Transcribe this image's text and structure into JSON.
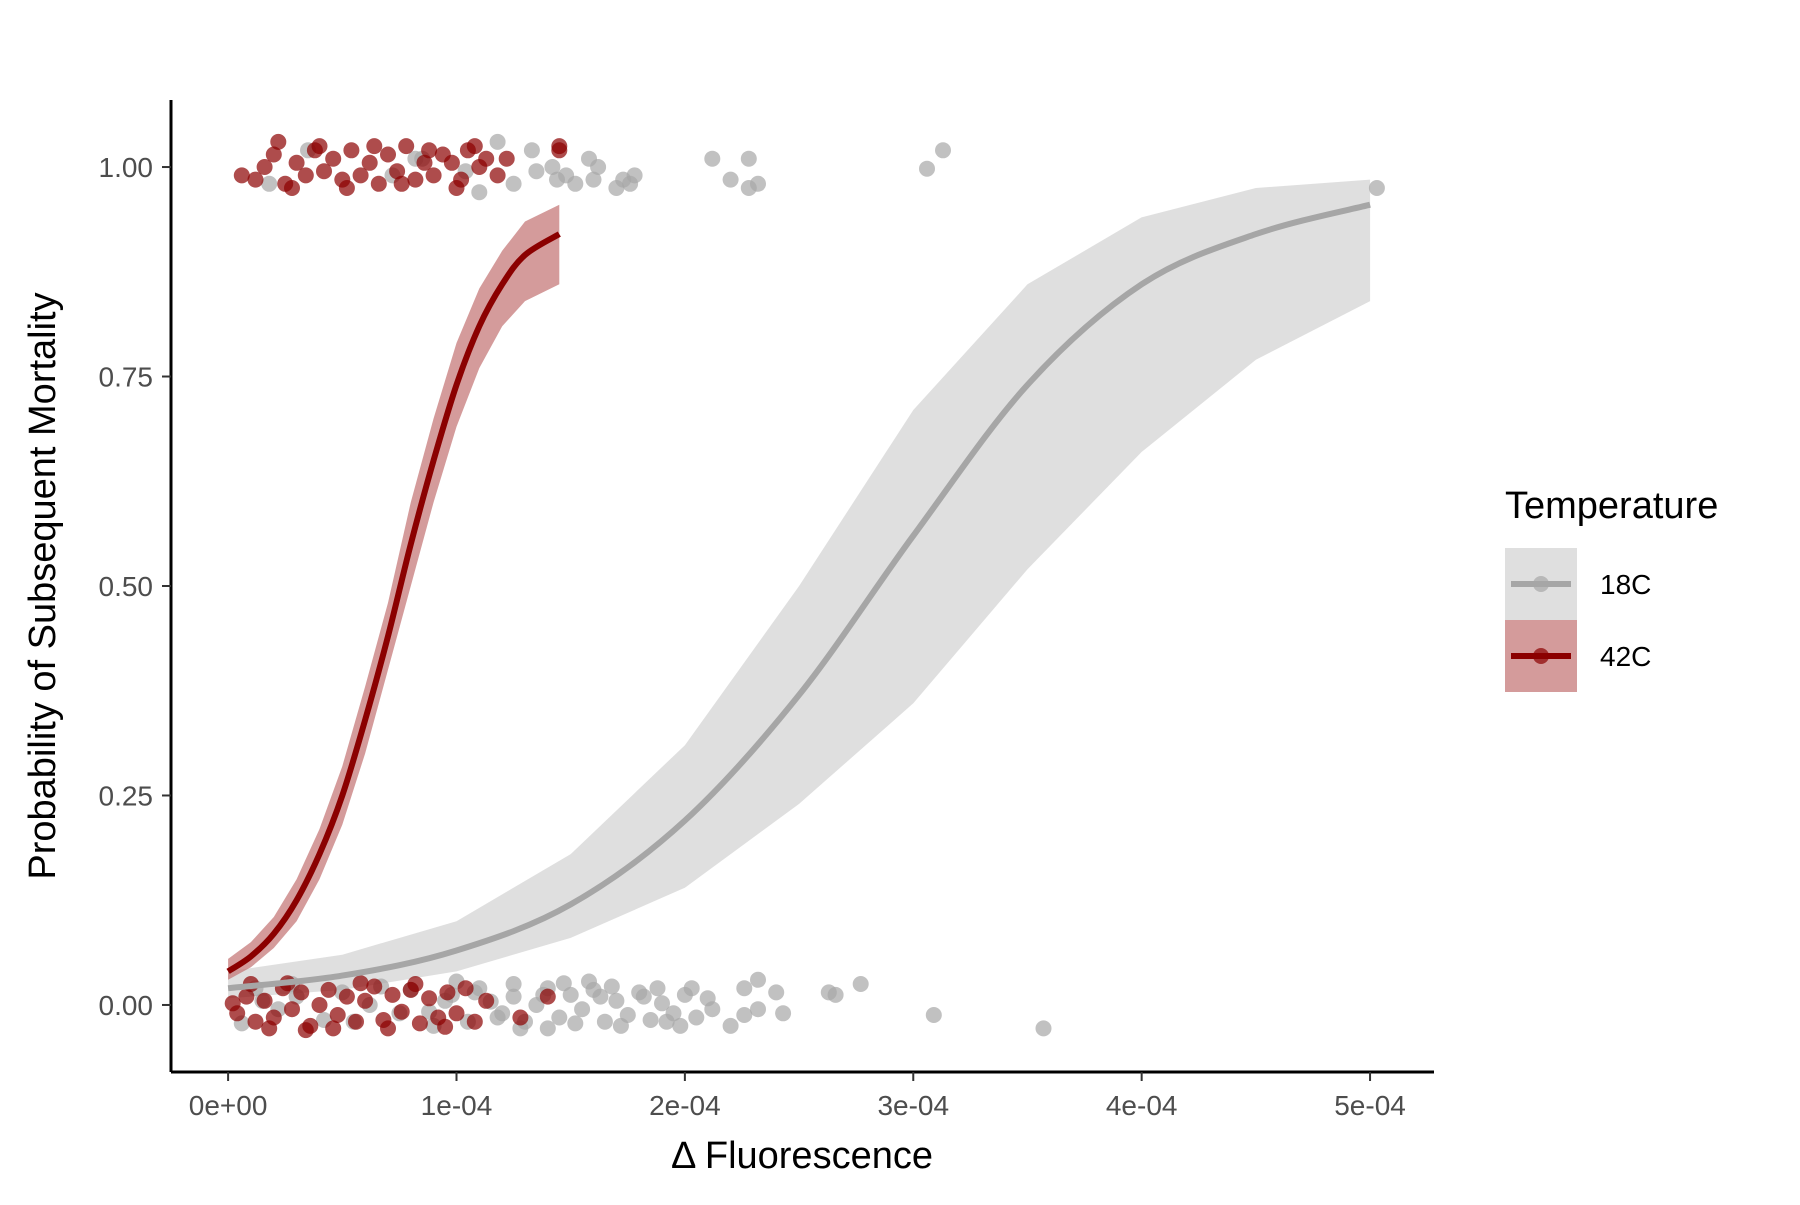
{
  "chart_data": {
    "type": "scatter",
    "xlabel": "Δ Fluorescence",
    "ylabel": "Probability of Subsequent Mortality",
    "xlim": [
      -2.5e-05,
      0.000528
    ],
    "ylim": [
      -0.08,
      1.08
    ],
    "x_ticks": [
      {
        "value": 0,
        "label": "0e+00"
      },
      {
        "value": 0.0001,
        "label": "1e-04"
      },
      {
        "value": 0.0002,
        "label": "2e-04"
      },
      {
        "value": 0.0003,
        "label": "3e-04"
      },
      {
        "value": 0.0004,
        "label": "4e-04"
      },
      {
        "value": 0.0005,
        "label": "5e-04"
      }
    ],
    "y_ticks": [
      {
        "value": 0,
        "label": "0.00"
      },
      {
        "value": 0.25,
        "label": "0.25"
      },
      {
        "value": 0.5,
        "label": "0.50"
      },
      {
        "value": 0.75,
        "label": "0.75"
      },
      {
        "value": 1,
        "label": "1.00"
      }
    ],
    "grid": false,
    "legend": {
      "title": "Temperature",
      "position": "right",
      "entries": [
        {
          "label": "18C",
          "color": "#a6a6a6",
          "band_color": "#d9d9d9"
        },
        {
          "label": "42C",
          "color": "#8b0000",
          "band_color": "#c27070"
        }
      ]
    },
    "series": [
      {
        "name": "18C",
        "color": "#a6a6a6",
        "band_color": "#d9d9d9",
        "fit_x": [
          0,
          5e-05,
          0.0001,
          0.00015,
          0.0002,
          0.00025,
          0.0003,
          0.00035,
          0.0004,
          0.00045,
          0.0005
        ],
        "fit_y": [
          0.02,
          0.035,
          0.065,
          0.12,
          0.22,
          0.37,
          0.56,
          0.74,
          0.86,
          0.92,
          0.955
        ],
        "fit_lower": [
          0.008,
          0.018,
          0.04,
          0.08,
          0.14,
          0.24,
          0.36,
          0.52,
          0.66,
          0.77,
          0.84
        ],
        "fit_upper": [
          0.04,
          0.06,
          0.1,
          0.18,
          0.31,
          0.5,
          0.71,
          0.86,
          0.94,
          0.975,
          0.985
        ],
        "points": [
          [
            1.8e-05,
            0.98
          ],
          [
            3.5e-05,
            1.02
          ],
          [
            7.2e-05,
            0.99
          ],
          [
            8.5e-05,
            1.01
          ],
          [
            0.00011,
            0.97
          ],
          [
            0.000118,
            1.03
          ],
          [
            0.000125,
            0.98
          ],
          [
            0.000135,
            0.995
          ],
          [
            0.000144,
            0.985
          ],
          [
            0.000142,
            1.0
          ],
          [
            0.000148,
            0.99
          ],
          [
            0.000133,
            1.02
          ],
          [
            0.000152,
            0.98
          ],
          [
            0.000162,
            1.0
          ],
          [
            0.00016,
            0.985
          ],
          [
            0.00017,
            0.975
          ],
          [
            0.000158,
            1.01
          ],
          [
            0.000178,
            0.99
          ],
          [
            0.000173,
            0.985
          ],
          [
            0.000176,
            0.98
          ],
          [
            0.000212,
            1.01
          ],
          [
            0.00022,
            0.985
          ],
          [
            0.000228,
            1.01
          ],
          [
            0.000228,
            0.975
          ],
          [
            0.000232,
            0.98
          ],
          [
            0.000306,
            0.998
          ],
          [
            0.000313,
            1.02
          ],
          [
            0.000503,
            0.975
          ],
          [
            8.2e-05,
            1.01
          ],
          [
            0.000104,
            0.995
          ],
          [
            0.00012,
            -0.01
          ],
          [
            0.000125,
            0.01
          ],
          [
            0.00013,
            -0.02
          ],
          [
            0.000135,
            0.0
          ],
          [
            0.00014,
            0.02
          ],
          [
            0.000145,
            -0.015
          ],
          [
            0.00015,
            0.012
          ],
          [
            0.000155,
            -0.005
          ],
          [
            0.00016,
            0.018
          ],
          [
            0.000165,
            -0.02
          ],
          [
            0.00017,
            0.005
          ],
          [
            0.000175,
            -0.012
          ],
          [
            0.00018,
            0.015
          ],
          [
            0.000185,
            -0.018
          ],
          [
            0.00019,
            0.002
          ],
          [
            0.000195,
            -0.01
          ],
          [
            0.0002,
            0.012
          ],
          [
            0.000205,
            -0.015
          ],
          [
            0.00021,
            0.008
          ],
          [
            0.000125,
            0.025
          ],
          [
            0.00014,
            -0.028
          ],
          [
            0.000158,
            0.028
          ],
          [
            0.000168,
            0.022
          ],
          [
            0.000182,
            0.01
          ],
          [
            0.000198,
            -0.025
          ],
          [
            0.00022,
            -0.025
          ],
          [
            0.000226,
            0.02
          ],
          [
            0.000232,
            0.03
          ],
          [
            0.000226,
            -0.012
          ],
          [
            0.00024,
            0.015
          ],
          [
            0.000232,
            -0.005
          ],
          [
            0.000243,
            -0.01
          ],
          [
            0.000263,
            0.015
          ],
          [
            0.000266,
            0.012
          ],
          [
            0.000277,
            0.025
          ],
          [
            0.000309,
            -0.012
          ],
          [
            0.000357,
            -0.028
          ],
          [
            0.00011,
            0.02
          ],
          [
            0.000105,
            -0.02
          ],
          [
            0.0001,
            0.028
          ],
          [
            9e-05,
            -0.025
          ],
          [
            9.5e-05,
            0.005
          ],
          [
            8e-05,
            0.018
          ],
          [
            7.5e-05,
            -0.01
          ],
          [
            6.2e-05,
            0.0
          ],
          [
            5e-05,
            0.015
          ],
          [
            4.2e-05,
            -0.018
          ],
          [
            3e-05,
            0.01
          ],
          [
            2.2e-05,
            -0.005
          ],
          [
            1.2e-05,
            0.02
          ],
          [
            6e-06,
            -0.022
          ],
          [
            1.5e-05,
            0.005
          ],
          [
            2.8e-05,
            0.025
          ],
          [
            5.5e-05,
            -0.02
          ],
          [
            6.7e-05,
            0.022
          ],
          [
            0.000115,
            0.004
          ],
          [
            0.000128,
            -0.028
          ],
          [
            0.000147,
            0.026
          ],
          [
            0.000152,
            -0.022
          ],
          [
            0.000163,
            0.01
          ],
          [
            0.000188,
            0.02
          ],
          [
            0.000172,
            -0.025
          ],
          [
            0.000192,
            -0.02
          ],
          [
            0.000203,
            0.02
          ],
          [
            0.000212,
            -0.005
          ],
          [
            0.000138,
            0.012
          ],
          [
            0.000118,
            -0.015
          ],
          [
            9.8e-05,
            0.012
          ],
          [
            8.8e-05,
            -0.008
          ],
          [
            0.000108,
            0.015
          ]
        ]
      },
      {
        "name": "42C",
        "color": "#8b0000",
        "band_color": "#c27070",
        "fit_x": [
          0,
          1e-05,
          2e-05,
          3e-05,
          4e-05,
          5e-05,
          6e-05,
          7e-05,
          8e-05,
          9e-05,
          0.0001,
          0.00011,
          0.00012,
          0.00013,
          0.000145
        ],
        "fit_y": [
          0.04,
          0.058,
          0.085,
          0.125,
          0.18,
          0.25,
          0.34,
          0.44,
          0.55,
          0.65,
          0.74,
          0.81,
          0.86,
          0.895,
          0.92
        ],
        "fit_lower": [
          0.03,
          0.045,
          0.068,
          0.1,
          0.15,
          0.215,
          0.3,
          0.4,
          0.5,
          0.6,
          0.69,
          0.76,
          0.81,
          0.84,
          0.86
        ],
        "fit_upper": [
          0.055,
          0.075,
          0.105,
          0.15,
          0.21,
          0.285,
          0.38,
          0.48,
          0.6,
          0.7,
          0.79,
          0.855,
          0.9,
          0.935,
          0.955
        ],
        "points": [
          [
            6e-06,
            0.99
          ],
          [
            1.2e-05,
            0.985
          ],
          [
            1.6e-05,
            1.0
          ],
          [
            2e-05,
            1.015
          ],
          [
            2.5e-05,
            0.98
          ],
          [
            3e-05,
            1.005
          ],
          [
            3.4e-05,
            0.99
          ],
          [
            3.8e-05,
            1.02
          ],
          [
            4.2e-05,
            0.995
          ],
          [
            4.6e-05,
            1.01
          ],
          [
            5e-05,
            0.985
          ],
          [
            5.4e-05,
            1.02
          ],
          [
            5.8e-05,
            0.99
          ],
          [
            6.2e-05,
            1.005
          ],
          [
            6.6e-05,
            0.98
          ],
          [
            7e-05,
            1.015
          ],
          [
            7.4e-05,
            0.995
          ],
          [
            7.8e-05,
            1.025
          ],
          [
            8.2e-05,
            0.985
          ],
          [
            8.6e-05,
            1.005
          ],
          [
            9e-05,
            0.99
          ],
          [
            9.4e-05,
            1.015
          ],
          [
            0.0001,
            0.975
          ],
          [
            0.000105,
            1.02
          ],
          [
            0.00011,
            1.0
          ],
          [
            0.000113,
            1.01
          ],
          [
            0.000118,
            0.99
          ],
          [
            0.000122,
            1.01
          ],
          [
            0.000145,
            1.025
          ],
          [
            0.000145,
            1.02
          ],
          [
            2.2e-05,
            1.03
          ],
          [
            2.8e-05,
            0.975
          ],
          [
            4e-05,
            1.025
          ],
          [
            5.2e-05,
            0.975
          ],
          [
            6.4e-05,
            1.025
          ],
          [
            7.6e-05,
            0.98
          ],
          [
            8.8e-05,
            1.02
          ],
          [
            9.8e-05,
            1.005
          ],
          [
            0.000102,
            0.985
          ],
          [
            0.000108,
            1.025
          ],
          [
            4e-06,
            -0.01
          ],
          [
            8e-06,
            0.01
          ],
          [
            1.2e-05,
            -0.02
          ],
          [
            1.6e-05,
            0.005
          ],
          [
            2e-05,
            -0.015
          ],
          [
            2.4e-05,
            0.02
          ],
          [
            2.8e-05,
            -0.005
          ],
          [
            3.2e-05,
            0.015
          ],
          [
            3.6e-05,
            -0.025
          ],
          [
            4e-05,
            0.0
          ],
          [
            4.4e-05,
            0.018
          ],
          [
            4.8e-05,
            -0.012
          ],
          [
            5.2e-05,
            0.01
          ],
          [
            5.6e-05,
            -0.02
          ],
          [
            6e-05,
            0.005
          ],
          [
            6.4e-05,
            0.022
          ],
          [
            6.8e-05,
            -0.018
          ],
          [
            7.2e-05,
            0.012
          ],
          [
            7.6e-05,
            -0.008
          ],
          [
            8e-05,
            0.018
          ],
          [
            8.4e-05,
            -0.022
          ],
          [
            8.8e-05,
            0.008
          ],
          [
            9.2e-05,
            -0.015
          ],
          [
            9.6e-05,
            0.015
          ],
          [
            0.0001,
            -0.01
          ],
          [
            0.000104,
            0.02
          ],
          [
            0.000108,
            -0.02
          ],
          [
            0.000113,
            0.005
          ],
          [
            1e-05,
            0.025
          ],
          [
            1.8e-05,
            -0.028
          ],
          [
            2.6e-05,
            0.026
          ],
          [
            3.4e-05,
            -0.03
          ],
          [
            4.6e-05,
            -0.028
          ],
          [
            5.8e-05,
            0.026
          ],
          [
            7e-05,
            -0.028
          ],
          [
            8.2e-05,
            0.025
          ],
          [
            9.5e-05,
            -0.026
          ],
          [
            2e-06,
            0.002
          ],
          [
            0.00014,
            0.01
          ],
          [
            0.000128,
            -0.015
          ]
        ]
      }
    ]
  }
}
